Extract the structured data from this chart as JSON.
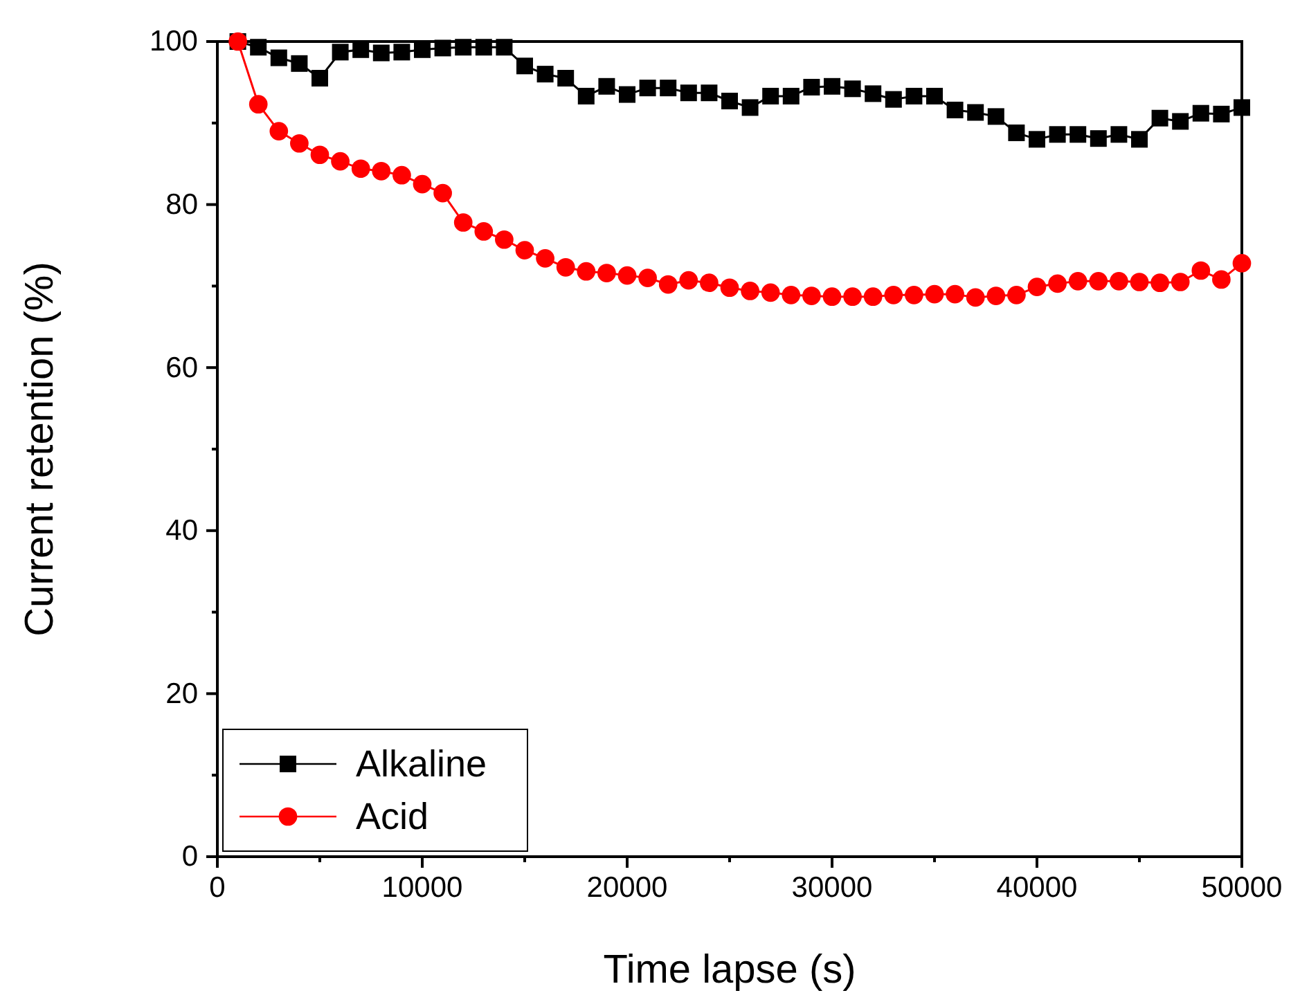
{
  "chart_data": {
    "type": "line",
    "xlabel": "Time lapse (s)",
    "ylabel": "Current retention (%)",
    "x": [
      1000,
      2000,
      3000,
      4000,
      5000,
      6000,
      7000,
      8000,
      9000,
      10000,
      11000,
      12000,
      13000,
      14000,
      15000,
      16000,
      17000,
      18000,
      19000,
      20000,
      21000,
      22000,
      23000,
      24000,
      25000,
      26000,
      27000,
      28000,
      29000,
      30000,
      31000,
      32000,
      33000,
      34000,
      35000,
      36000,
      37000,
      38000,
      39000,
      40000,
      41000,
      42000,
      43000,
      44000,
      45000,
      46000,
      47000,
      48000,
      49000,
      50000
    ],
    "series": [
      {
        "name": "Alkaline",
        "color": "#000000",
        "values": [
          100,
          99.3,
          98,
          97.3,
          95.5,
          98.7,
          99,
          98.6,
          98.7,
          99,
          99.2,
          99.3,
          99.3,
          99.3,
          97,
          96,
          95.5,
          93.3,
          94.5,
          93.5,
          94.3,
          94.3,
          93.7,
          93.7,
          92.7,
          91.9,
          93.3,
          93.3,
          94.4,
          94.5,
          94.2,
          93.6,
          92.9,
          93.3,
          93.3,
          91.6,
          91.3,
          90.8,
          88.8,
          88,
          88.6,
          88.6,
          88.1,
          88.6,
          88,
          90.6,
          90.2,
          91.2,
          91.1,
          91.9
        ]
      },
      {
        "name": "Acid",
        "color": "#ff0000",
        "marker": "circle",
        "values": [
          100,
          92.3,
          89,
          87.5,
          86.1,
          85.3,
          84.4,
          84.1,
          83.6,
          82.5,
          81.4,
          77.8,
          76.7,
          75.7,
          74.4,
          73.4,
          72.3,
          71.8,
          71.6,
          71.3,
          71,
          70.2,
          70.7,
          70.4,
          69.8,
          69.4,
          69.2,
          68.9,
          68.8,
          68.7,
          68.7,
          68.7,
          68.9,
          68.9,
          69,
          69,
          68.6,
          68.8,
          68.9,
          69.9,
          70.3,
          70.6,
          70.6,
          70.6,
          70.5,
          70.4,
          70.5,
          71.9,
          70.8,
          72.8
        ]
      }
    ],
    "xlim": [
      0,
      50000
    ],
    "xticks": [
      0,
      10000,
      20000,
      30000,
      40000,
      50000
    ],
    "ylim": [
      0,
      100
    ],
    "yticks": [
      0,
      20,
      40,
      60,
      80,
      100
    ],
    "legend": "bottom left",
    "grid": false,
    "marker": "square",
    "line_style": "solid"
  }
}
